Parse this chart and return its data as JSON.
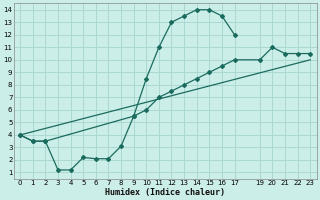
{
  "xlabel": "Humidex (Indice chaleur)",
  "bg_color": "#cceee8",
  "grid_color": "#aad8d0",
  "line_color": "#1a6b5e",
  "xlim": [
    -0.5,
    23.5
  ],
  "ylim": [
    0.5,
    14.5
  ],
  "xticks": [
    0,
    1,
    2,
    3,
    4,
    5,
    6,
    7,
    8,
    9,
    10,
    11,
    12,
    13,
    14,
    15,
    16,
    17,
    19,
    20,
    21,
    22,
    23
  ],
  "yticks": [
    1,
    2,
    3,
    4,
    5,
    6,
    7,
    8,
    9,
    10,
    11,
    12,
    13,
    14
  ],
  "series1_x": [
    0,
    1,
    2,
    3,
    4,
    5,
    6,
    7,
    8,
    9,
    10,
    11,
    12,
    13,
    14,
    15,
    16,
    17
  ],
  "series1_y": [
    4.0,
    3.5,
    3.5,
    1.2,
    1.2,
    2.2,
    2.1,
    2.1,
    3.1,
    5.5,
    8.5,
    11.0,
    13.0,
    13.5,
    14.0,
    14.0,
    13.5,
    12.0
  ],
  "series2_x": [
    0,
    1,
    2,
    9,
    10,
    11,
    12,
    13,
    14,
    15,
    16,
    17,
    19,
    20,
    21,
    22,
    23
  ],
  "series2_y": [
    4.0,
    3.5,
    3.5,
    5.5,
    6.0,
    7.0,
    7.5,
    8.0,
    8.5,
    9.0,
    9.5,
    10.0,
    10.0,
    11.0,
    10.5,
    10.5,
    10.5
  ],
  "series3_x": [
    0,
    23
  ],
  "series3_y": [
    4.0,
    10.0
  ]
}
